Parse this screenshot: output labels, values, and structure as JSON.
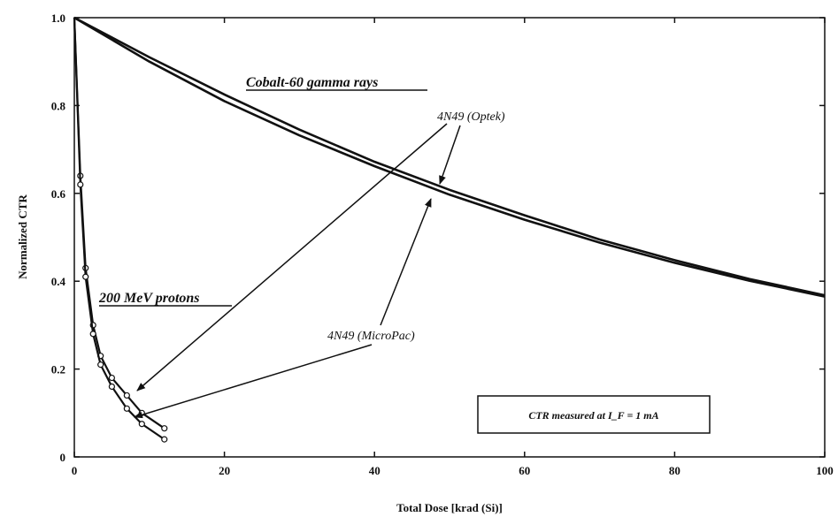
{
  "chart_data": {
    "type": "line",
    "xlabel": "Total Dose [krad (Si)]",
    "ylabel": "Normalized CTR",
    "xlim": [
      0,
      100
    ],
    "ylim": [
      0,
      1.0
    ],
    "x_ticks": [
      "0",
      "20",
      "40",
      "60",
      "80",
      "100"
    ],
    "y_ticks": [
      "0",
      "0.2",
      "0.4",
      "0.6",
      "0.8",
      "1.0"
    ],
    "grid": false,
    "legend": "none",
    "series": [
      {
        "group": "cobalt",
        "x": [
          0,
          10,
          20,
          30,
          40,
          50,
          60,
          70,
          80,
          90,
          100
        ],
        "y": [
          1.0,
          0.9,
          0.81,
          0.732,
          0.662,
          0.597,
          0.54,
          0.488,
          0.442,
          0.401,
          0.365
        ]
      },
      {
        "group": "cobalt",
        "x": [
          0,
          10,
          20,
          30,
          40,
          50,
          60,
          70,
          80,
          90,
          100
        ],
        "y": [
          1.0,
          0.91,
          0.825,
          0.745,
          0.672,
          0.608,
          0.55,
          0.495,
          0.448,
          0.405,
          0.368
        ]
      },
      {
        "group": "proton",
        "x": [
          0,
          0.8,
          1.5,
          2.5,
          3.5,
          5,
          7,
          9,
          12
        ],
        "y": [
          1.0,
          0.64,
          0.43,
          0.3,
          0.23,
          0.18,
          0.14,
          0.1,
          0.065
        ],
        "markers": true
      },
      {
        "group": "proton",
        "x": [
          0,
          0.8,
          1.5,
          2.5,
          3.5,
          5,
          7,
          9,
          12
        ],
        "y": [
          1.0,
          0.62,
          0.41,
          0.28,
          0.21,
          0.16,
          0.11,
          0.075,
          0.04
        ],
        "markers": true
      }
    ],
    "annotations": {
      "cobalt": "Cobalt-60 gamma rays",
      "protons": "200 MeV protons",
      "optek": "4N49 (Optek)",
      "micropac": "4N49 (MicroPac)",
      "condition": "CTR measured at I_F = 1 mA"
    }
  }
}
